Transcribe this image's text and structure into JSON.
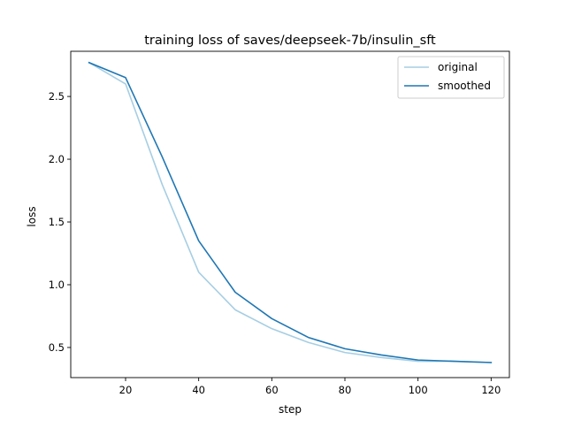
{
  "chart_data": {
    "type": "line",
    "title": "training loss of saves/deepseek-7b/insulin_sft",
    "xlabel": "step",
    "ylabel": "loss",
    "xlim": [
      5,
      125
    ],
    "ylim": [
      0.26,
      2.86
    ],
    "xticks": [
      20,
      40,
      60,
      80,
      100,
      120
    ],
    "yticks": [
      0.5,
      1.0,
      1.5,
      2.0,
      2.5
    ],
    "xtick_labels": [
      "20",
      "40",
      "60",
      "80",
      "100",
      "120"
    ],
    "ytick_labels": [
      "0.5",
      "1.0",
      "1.5",
      "2.0",
      "2.5"
    ],
    "grid": false,
    "legend_position": "top-right",
    "x": [
      10,
      20,
      30,
      40,
      50,
      60,
      70,
      80,
      90,
      100,
      110,
      120
    ],
    "series": [
      {
        "name": "original",
        "color": "#a6cee3",
        "values": [
          2.77,
          2.6,
          1.8,
          1.1,
          0.8,
          0.65,
          0.54,
          0.46,
          0.42,
          0.39,
          0.39,
          0.38
        ]
      },
      {
        "name": "smoothed",
        "color": "#1f77b4",
        "values": [
          2.77,
          2.65,
          2.02,
          1.35,
          0.94,
          0.73,
          0.58,
          0.49,
          0.44,
          0.4,
          0.39,
          0.38
        ]
      }
    ]
  }
}
